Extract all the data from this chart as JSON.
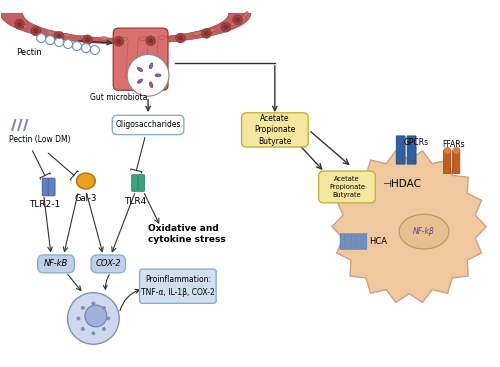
{
  "fig_width": 5.0,
  "fig_height": 3.67,
  "dpi": 100,
  "bg_color": "#ffffff",
  "labels": {
    "pectin": "Pectin",
    "gut_microbiota": "Gut microbiota",
    "oligosaccharides": "Oligosaccharides",
    "acetate_box1": "Acetate\nPropionate\nButyrate",
    "acetate_box2": "Acetate\nPropionate\nButyrate",
    "pectin_low_dm": "Pectin (Low DM)",
    "gal3": "Gal-3",
    "tlr4": "TLR4",
    "tlr21": "TLR2-1",
    "nfkb": "NF-kB",
    "cox2": "COX-2",
    "oxidative": "Oxidative and\ncytokine stress",
    "proinflam": "Proinflammation:\nTNF-α, IL-1β, COX-2",
    "hdac": "⊣HDAC",
    "gpcrs": "GPCRs",
    "ffars": "FFARs",
    "hca": "HCA",
    "nfkb2": "NF-kβ"
  },
  "colors": {
    "box_yellow_fill": "#f5e6a0",
    "box_yellow_border": "#c8b040",
    "box_blue_border": "#8ab0d0",
    "arrow_color": "#333333",
    "gal3_color": "#e8a020",
    "tlr4_color": "#40a080",
    "tlr2_color": "#6080c0",
    "nfkb_ellipse": "#c0d0e8",
    "proinflam_box": "#d0e0f0",
    "proinflam_border": "#8ab0d0",
    "pectin_chain": "#7090c0",
    "bacteria_color": "#9060a0",
    "hdac_cell_fill": "#f0c8a0",
    "hdac_cell_border": "#d0a080",
    "hca_color": "#7090c0",
    "gpcr_color": "#3060a0"
  }
}
